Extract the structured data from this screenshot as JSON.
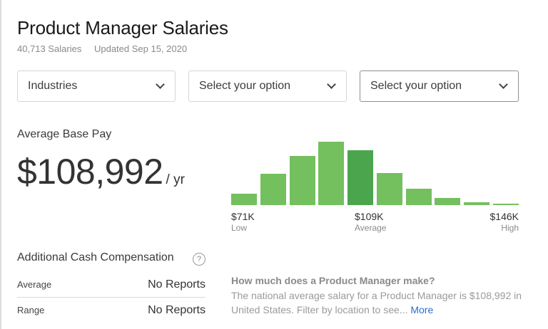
{
  "header": {
    "title": "Product Manager Salaries",
    "salary_count": "40,713 Salaries",
    "updated": "Updated Sep 15, 2020"
  },
  "filters": [
    {
      "value": "Industries"
    },
    {
      "value": "Select your option"
    },
    {
      "value": "Select your option"
    }
  ],
  "base_pay": {
    "label": "Average Base Pay",
    "amount": "$108,992",
    "unit": "/ yr"
  },
  "distribution": {
    "low_value": "$71K",
    "low_label": "Low",
    "avg_value": "$109K",
    "avg_label": "Average",
    "high_value": "$146K",
    "high_label": "High",
    "bar_color": "#74bf5e",
    "avg_bar_color": "#4ba54d"
  },
  "chart_data": {
    "type": "bar",
    "title": "Base pay distribution",
    "categories": [
      "1",
      "2",
      "3",
      "4",
      "5",
      "6",
      "7",
      "8",
      "9",
      "10"
    ],
    "values": [
      16,
      44,
      69,
      89,
      77,
      45,
      23,
      10,
      4,
      2
    ],
    "highlight_index": 4,
    "xlabel": "",
    "ylabel": "",
    "x_ticks": [
      "$71K",
      "$109K",
      "$146K"
    ],
    "x_tick_labels": [
      "Low",
      "Average",
      "High"
    ],
    "grid": false
  },
  "additional_cash": {
    "title": "Additional Cash Compensation",
    "help_icon": "?",
    "rows": [
      {
        "label": "Average",
        "value": "No Reports"
      },
      {
        "label": "Range",
        "value": "No Reports"
      }
    ]
  },
  "faq": {
    "question": "How much does a Product Manager make?",
    "answer": "The national average salary for a Product Manager is $108,992 in United States. Filter by location to see...",
    "more_label": "More"
  }
}
